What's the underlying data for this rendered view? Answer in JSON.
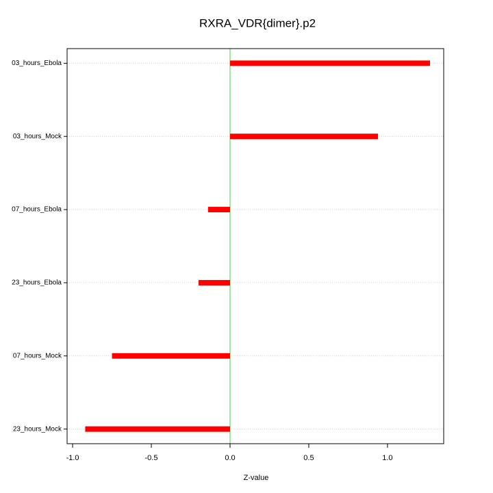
{
  "chart_data": {
    "type": "hbar",
    "title": "RXRA_VDR{dimer}.p2",
    "x_label": "Z-value",
    "categories": [
      "03_hours_Ebola",
      "03_hours_Mock",
      "07_hours_Ebola",
      "23_hours_Ebola",
      "07_hours_Mock",
      "23_hours_Mock"
    ],
    "values": [
      1.27,
      0.94,
      -0.14,
      -0.2,
      -0.75,
      -0.92
    ],
    "color": "#ff0000",
    "zero_line": 0,
    "zero_line_color": "#33dd33",
    "xlim": [
      -1.035,
      1.357
    ],
    "xticks": [
      {
        "value": -1,
        "label": "-1.0"
      },
      -0.5,
      {
        "value": 0,
        "label": "0.0"
      },
      0.5,
      {
        "value": 1,
        "label": "1.0"
      }
    ],
    "grid": true
  }
}
